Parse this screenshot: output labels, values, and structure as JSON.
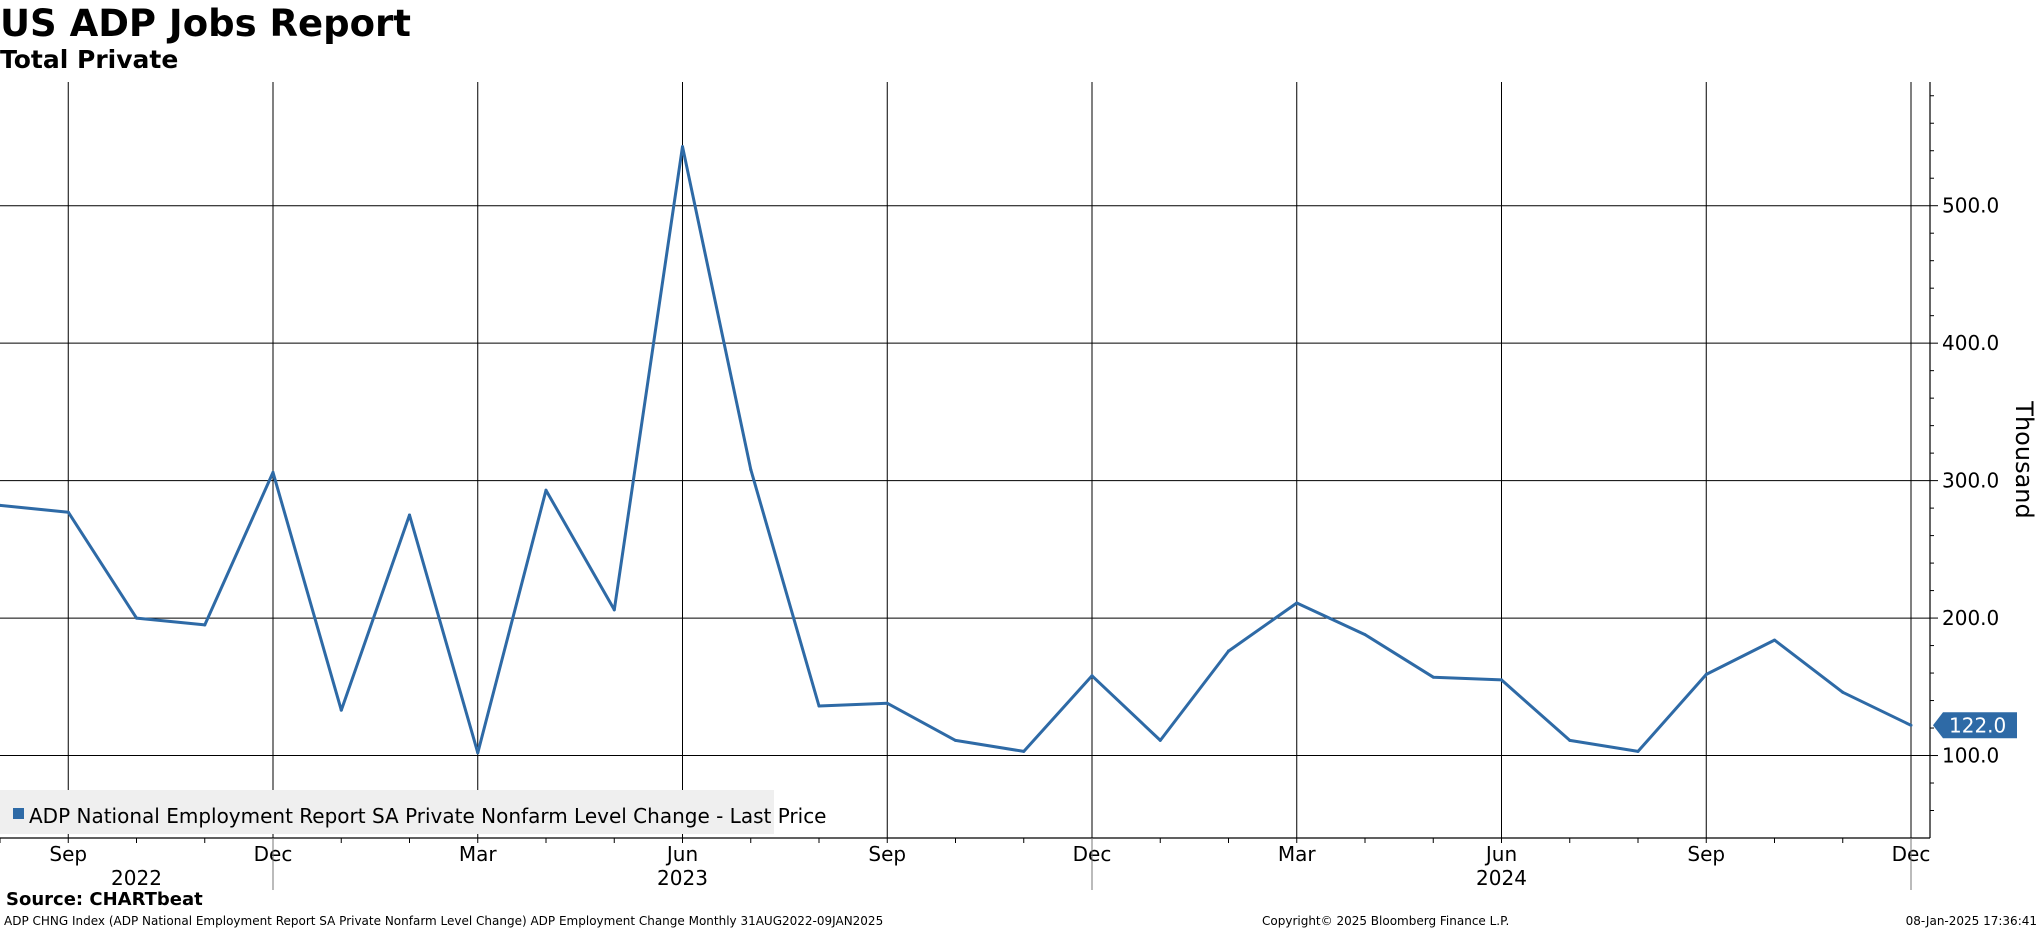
{
  "header": {
    "title": "US ADP Jobs Report",
    "subtitle": "Total Private"
  },
  "footer": {
    "source": "Source: CHARTbeat",
    "description": "ADP CHNG Index (ADP National Employment Report SA Private Nonfarm Level Change) ADP Employment Change  Monthly 31AUG2022-09JAN2025",
    "copyright": "Copyright© 2025 Bloomberg Finance L.P.",
    "timestamp": "08-Jan-2025 17:36:41"
  },
  "colors": {
    "series": "#2e6aa6",
    "grid": "#000000",
    "legend_bg": "#efefef",
    "last_badge_bg": "#2e6aa6",
    "last_badge_text": "#ffffff"
  },
  "chart_data": {
    "type": "line",
    "ylabel": "Thousand",
    "ylim": [
      40,
      590
    ],
    "y_ticks": [
      100,
      200,
      300,
      400,
      500
    ],
    "y_tick_labels": [
      "100.0",
      "200.0",
      "300.0",
      "400.0",
      "500.0"
    ],
    "y_axis_side": "right",
    "grid": true,
    "legend_position": "bottom-left",
    "x": [
      "2022-08",
      "2022-09",
      "2022-10",
      "2022-11",
      "2022-12",
      "2023-01",
      "2023-02",
      "2023-03",
      "2023-04",
      "2023-05",
      "2023-06",
      "2023-07",
      "2023-08",
      "2023-09",
      "2023-10",
      "2023-11",
      "2023-12",
      "2024-01",
      "2024-02",
      "2024-03",
      "2024-04",
      "2024-05",
      "2024-06",
      "2024-07",
      "2024-08",
      "2024-09",
      "2024-10",
      "2024-11",
      "2024-12"
    ],
    "x_tick_labels": [
      {
        "x": "2022-09",
        "label": "Sep"
      },
      {
        "x": "2022-12",
        "label": "Dec"
      },
      {
        "x": "2023-03",
        "label": "Mar"
      },
      {
        "x": "2023-06",
        "label": "Jun"
      },
      {
        "x": "2023-09",
        "label": "Sep"
      },
      {
        "x": "2023-12",
        "label": "Dec"
      },
      {
        "x": "2024-03",
        "label": "Mar"
      },
      {
        "x": "2024-06",
        "label": "Jun"
      },
      {
        "x": "2024-09",
        "label": "Sep"
      },
      {
        "x": "2024-12",
        "label": "Dec"
      }
    ],
    "year_labels": [
      {
        "x": "2022-10",
        "label": "2022"
      },
      {
        "x": "2023-06",
        "label": "2023"
      },
      {
        "x": "2024-06",
        "label": "2024"
      }
    ],
    "series": [
      {
        "name": "ADP National Employment Report SA Private Nonfarm Level Change - Last Price",
        "values": [
          282,
          277,
          200,
          195,
          306,
          133,
          275,
          102,
          293,
          206,
          543,
          308,
          136,
          138,
          111,
          103,
          158,
          111,
          176,
          211,
          188,
          157,
          155,
          111,
          103,
          159,
          184,
          146,
          122
        ]
      }
    ],
    "last_value_label": "122.0"
  }
}
